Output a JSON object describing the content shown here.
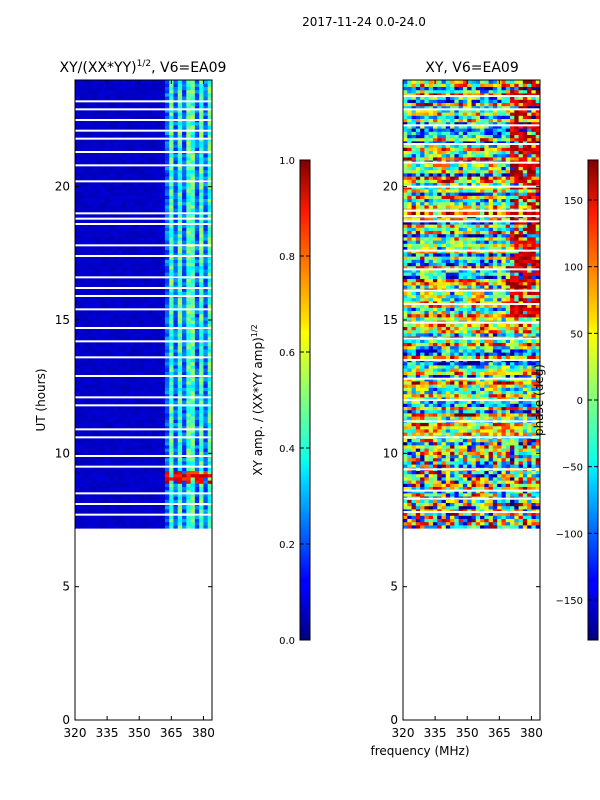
{
  "suptitle": "2017-11-24 0.0-24.0",
  "xlabel_shared": "frequency (MHz)",
  "chart_data": [
    {
      "type": "heatmap",
      "title_main": "XY/(XX*YY)",
      "title_exp": "1/2",
      "title_tail": ", V6=EA09",
      "xlim": [
        320,
        384
      ],
      "ylim": [
        0,
        24
      ],
      "xticks": [
        "320",
        "335",
        "350",
        "365",
        "380"
      ],
      "xtick_values": [
        320,
        335,
        350,
        365,
        380
      ],
      "yticks": [
        "0",
        "5",
        "10",
        "15",
        "20"
      ],
      "ytick_values": [
        0,
        5,
        10,
        15,
        20
      ],
      "ylabel": "UT (hours)",
      "data_ut_range": [
        7.2,
        24.0
      ],
      "low_freq_range": [
        320,
        362
      ],
      "low_value": 0.05,
      "bright_channels_mhz": [
        364,
        368,
        373,
        378,
        382
      ],
      "bright_value": 0.35,
      "hot_spot": {
        "ut": [
          8.8,
          9.3
        ],
        "value": 0.8
      },
      "gap_rows_ut": [
        7.7,
        8.1,
        8.5,
        9.5,
        9.9,
        10.6,
        10.9,
        11.8,
        12.1,
        12.9,
        13.6,
        14.2,
        14.7,
        15.4,
        15.9,
        16.2,
        16.6,
        17.4,
        17.8,
        18.6,
        18.8,
        19.0,
        20.2,
        20.8,
        21.3,
        21.8,
        22.1,
        22.5,
        22.9,
        23.2
      ]
    },
    {
      "type": "colorbar",
      "range": [
        0.0,
        1.0
      ],
      "tick_labels": [
        "0.0",
        "0.2",
        "0.4",
        "0.6",
        "0.8",
        "1.0"
      ],
      "tick_values": [
        0.0,
        0.2,
        0.4,
        0.6,
        0.8,
        1.0
      ],
      "label_main": "XY amp. / (XX*YY amp)",
      "label_exp": "1/2",
      "colormap": "jet"
    },
    {
      "type": "heatmap",
      "title": "XY, V6=EA09",
      "xlim": [
        320,
        384
      ],
      "ylim": [
        0,
        24
      ],
      "xticks": [
        "320",
        "335",
        "350",
        "365",
        "380"
      ],
      "xtick_values": [
        320,
        335,
        350,
        365,
        380
      ],
      "yticks": [
        "0",
        "5",
        "10",
        "15",
        "20"
      ],
      "ytick_values": [
        0,
        5,
        10,
        15,
        20
      ],
      "xlabel": "frequency (MHz)",
      "data_ut_range": [
        7.2,
        24.0
      ],
      "value_range_deg": [
        -180,
        180
      ],
      "gap_rows_ut": [
        7.8,
        8.3,
        8.6,
        9.4,
        10.6,
        11.2,
        12.0,
        12.8,
        13.5,
        14.3,
        14.9,
        15.6,
        16.1,
        16.9,
        17.6,
        18.7,
        18.9,
        19.1,
        20.0,
        20.9,
        21.6,
        22.3,
        22.9,
        23.4
      ]
    },
    {
      "type": "colorbar",
      "range": [
        -180,
        180
      ],
      "tick_labels": [
        "−150",
        "−100",
        "−50",
        "0",
        "50",
        "100",
        "150"
      ],
      "tick_values": [
        -150,
        -100,
        -50,
        0,
        50,
        100,
        150
      ],
      "label": "phase (deg)",
      "colormap": "jet"
    }
  ]
}
